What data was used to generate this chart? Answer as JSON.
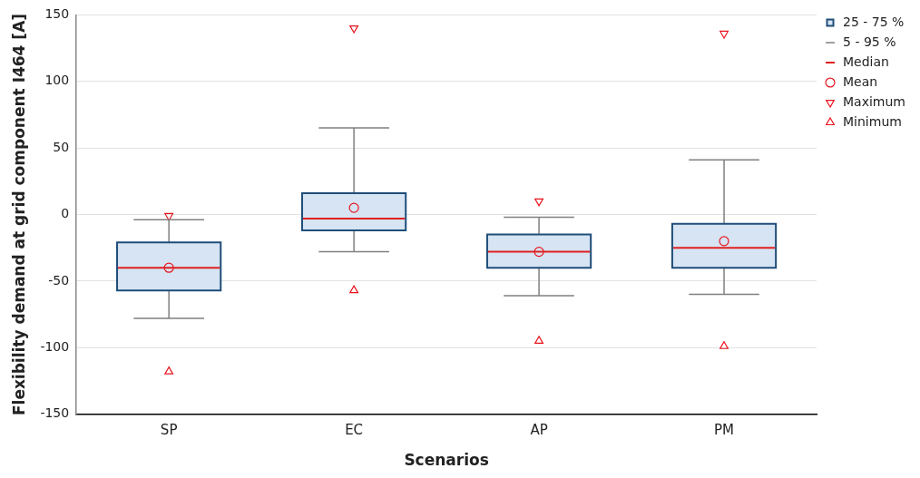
{
  "chart_data": {
    "type": "box",
    "xlabel": "Scenarios",
    "ylabel": "Flexibility demand at grid component I464 [A]",
    "categories": [
      "SP",
      "EC",
      "AP",
      "PM"
    ],
    "ylim": [
      -150,
      150
    ],
    "yticks": [
      -150,
      -100,
      -50,
      0,
      50,
      100,
      150
    ],
    "grid": "y",
    "legend": "right",
    "annotations": [
      "5 - 95 %",
      "Median"
    ],
    "series": [
      {
        "type": "box",
        "name": "25 - 75 %",
        "color": "#d6e4f3",
        "boxes": [
          {
            "low": -78,
            "q1": -57,
            "median": -40,
            "q3": -21,
            "high": -4
          },
          {
            "low": -28,
            "q1": -12,
            "median": -3,
            "q3": 16,
            "high": 65
          },
          {
            "low": -61,
            "q1": -40,
            "median": -28,
            "q3": -15,
            "high": -2
          },
          {
            "low": -60,
            "q1": -40,
            "median": -25,
            "q3": -7,
            "high": 41
          }
        ]
      },
      {
        "type": "scatter",
        "name": "Mean",
        "marker": "circle",
        "color": "#e8141e",
        "x": [
          "SP",
          "EC",
          "AP",
          "PM"
        ],
        "values": [
          -40,
          5,
          -28,
          -20
        ]
      },
      {
        "type": "scatter",
        "name": "Maximum",
        "marker": "triangle-down",
        "color": "#e8141e",
        "x": [
          "SP",
          "EC",
          "AP",
          "PM"
        ],
        "values": [
          -1,
          140,
          10,
          136
        ]
      },
      {
        "type": "scatter",
        "name": "Minimum",
        "marker": "triangle",
        "color": "#e8141e",
        "x": [
          "SP",
          "EC",
          "AP",
          "PM"
        ],
        "values": [
          -118,
          -57,
          -95,
          -99
        ]
      }
    ]
  }
}
